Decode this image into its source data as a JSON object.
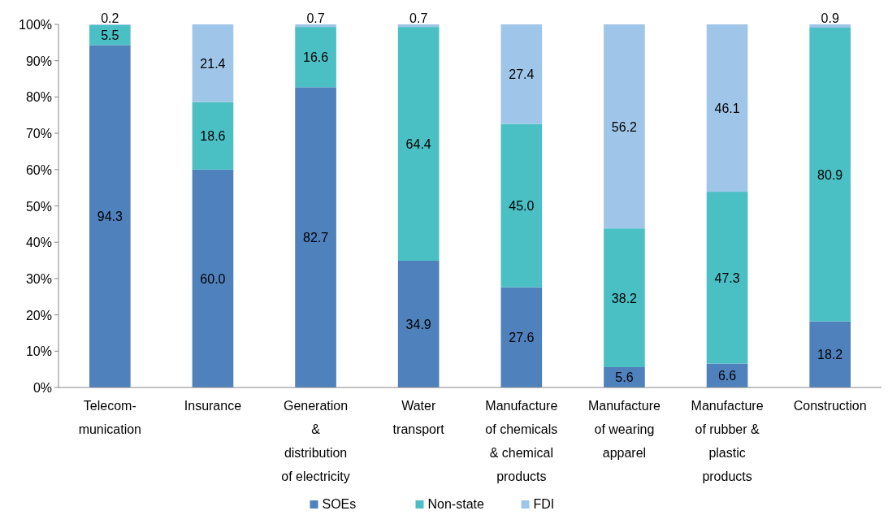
{
  "chart_data": {
    "type": "bar",
    "stacked": true,
    "categories": [
      "Telecom-\nmunication",
      "Insurance",
      "Generation\n&\ndistribution\nof electricity",
      "Water\ntransport",
      "Manufacture\nof chemicals\n& chemical\nproducts",
      "Manufacture\nof wearing\napparel",
      "Manufacture\nof rubber &\nplastic\nproducts",
      "Construction"
    ],
    "series": [
      {
        "name": "SOEs",
        "color": "#4f81bd",
        "values": [
          94.3,
          60.0,
          82.7,
          34.9,
          27.6,
          5.6,
          6.6,
          18.2
        ],
        "value_labels": [
          "94.3",
          "60.0",
          "82.7",
          "34.9",
          "27.6",
          "5.6",
          "6.6",
          "18.2"
        ]
      },
      {
        "name": "Non-state",
        "color": "#4bc0c4",
        "values": [
          5.5,
          18.6,
          16.6,
          64.4,
          45.0,
          38.2,
          47.3,
          80.9
        ],
        "value_labels": [
          "5.5",
          "18.6",
          "16.6",
          "64.4",
          "45.0",
          "38.2",
          "47.3",
          "80.9"
        ]
      },
      {
        "name": "FDI",
        "color": "#9fc6e8",
        "values": [
          0.2,
          21.4,
          0.7,
          0.7,
          27.4,
          56.2,
          46.1,
          0.9
        ],
        "value_labels": [
          "0.2",
          "21.4",
          "0.7",
          "0.7",
          "27.4",
          "56.2",
          "46.1",
          "0.9"
        ]
      }
    ],
    "ylim": [
      0,
      100
    ],
    "yticks": [
      {
        "value": 0,
        "label": "0%"
      },
      {
        "value": 10,
        "label": "10%"
      },
      {
        "value": 20,
        "label": "20%"
      },
      {
        "value": 30,
        "label": "30%"
      },
      {
        "value": 40,
        "label": "40%"
      },
      {
        "value": 50,
        "label": "50%"
      },
      {
        "value": 60,
        "label": "60%"
      },
      {
        "value": 70,
        "label": "70%"
      },
      {
        "value": 80,
        "label": "80%"
      },
      {
        "value": 90,
        "label": "90%"
      },
      {
        "value": 100,
        "label": "100%"
      }
    ],
    "legend": "bottom",
    "grid": false
  }
}
